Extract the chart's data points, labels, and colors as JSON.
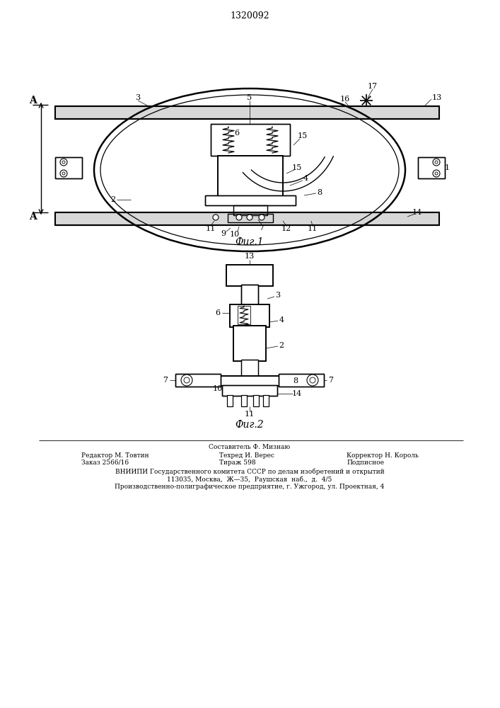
{
  "patent_number": "1320092",
  "fig1_caption": "Фиг.1",
  "fig2_caption": "Фиг.2",
  "footer_line0": "Составитель Ф. Мизнаю",
  "footer_line1a": "Редактор М. Товтин",
  "footer_line1b": "Техред И. Верес",
  "footer_line1c": "Корректор Н. Король",
  "footer_line2a": "Заказ 2566/16",
  "footer_line2b": "Тираж 598",
  "footer_line2c": "Подписное",
  "footer_line3": "ВНИИПИ Государственного комитета СССР по делам изобретений и открытий",
  "footer_line4": "113035, Москва,  Ж—35,  Раушская  наб.,  д.  4/5",
  "footer_line5": "Производственно-полиграфическое предприятие, г. Ужгород, ул. Проектная, 4",
  "bg_color": "#ffffff",
  "line_color": "#000000"
}
